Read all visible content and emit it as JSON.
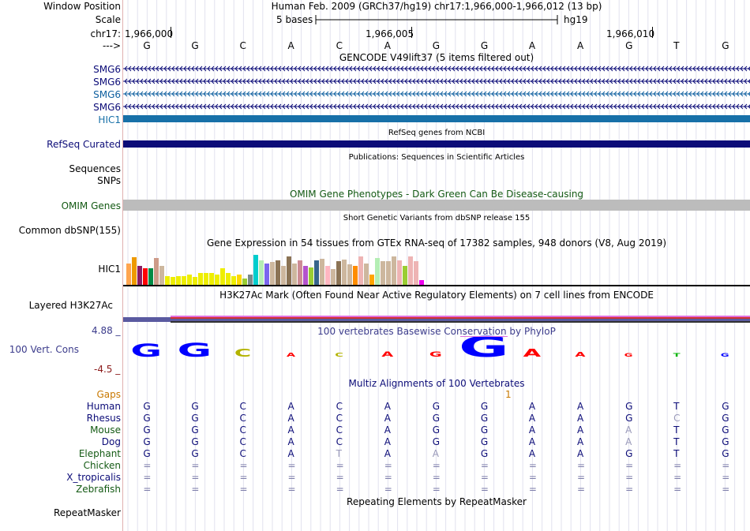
{
  "header": {
    "window_position_label": "Window Position",
    "window_position_value": "Human Feb. 2009 (GRCh37/hg19)   chr17:1,966,000-1,966,012 (13 bp)",
    "scale_label": "Scale",
    "scale_value": "5 bases",
    "scale_assembly": "hg19",
    "chrom_label": "chr17:",
    "coords": [
      "1,966,000",
      "1,966,005",
      "1,966,010"
    ],
    "strand_label": "--->"
  },
  "bases": [
    "G",
    "G",
    "C",
    "A",
    "C",
    "A",
    "G",
    "G",
    "A",
    "A",
    "G",
    "T",
    "G"
  ],
  "gencode": {
    "title": "GENCODE V49lift37 (5 items filtered out)",
    "genes": [
      "SMG6",
      "SMG6",
      "SMG6",
      "SMG6",
      "HIC1"
    ],
    "colors": [
      "#0c0c78",
      "#0c0c78",
      "#1060a0",
      "#0c0c78",
      "#1770a8"
    ]
  },
  "refseq": {
    "title": "RefSeq genes from NCBI",
    "label": "RefSeq Curated",
    "color": "#0c0c78"
  },
  "publications": {
    "title": "Publications: Sequences in Scientific Articles",
    "label1": "Sequences",
    "label2": "SNPs"
  },
  "omim": {
    "title": "OMIM Gene Phenotypes - Dark Green Can Be Disease-causing",
    "label": "OMIM Genes",
    "title_color": "#145a14",
    "bar_color": "#bcbcbc"
  },
  "dbsnp": {
    "title": "Short Genetic Variants from dbSNP release 155",
    "label": "Common dbSNP(155)"
  },
  "gtex": {
    "title": "Gene Expression in 54 tissues from GTEx RNA-seq of 17382 samples, 948 donors (V8, Aug 2019)",
    "label": "HIC1",
    "values": [
      0.72,
      0.92,
      0.62,
      0.55,
      0.55,
      0.9,
      0.62,
      0.28,
      0.25,
      0.3,
      0.3,
      0.35,
      0.25,
      0.4,
      0.4,
      0.4,
      0.35,
      0.55,
      0.4,
      0.3,
      0.35,
      0.2,
      0.35,
      1.0,
      0.82,
      0.72,
      0.75,
      0.82,
      0.62,
      0.95,
      0.72,
      0.82,
      0.62,
      0.58,
      0.82,
      0.88,
      0.62,
      0.52,
      0.8,
      0.85,
      0.68,
      0.62,
      0.95,
      0.72,
      0.35,
      0.9,
      0.8,
      0.78,
      0.95,
      0.82,
      0.62,
      0.95,
      0.78,
      0.15
    ],
    "colors": [
      "#ffa54f",
      "#ee9a00",
      "#8b1c62",
      "#ff0000",
      "#008b45",
      "#cd9b89",
      "#cdb79e",
      "#eeee00",
      "#eeee00",
      "#eeee00",
      "#eeee00",
      "#eeee00",
      "#eeee00",
      "#eeee00",
      "#eeee00",
      "#eeee00",
      "#eeee00",
      "#eeee00",
      "#eeee00",
      "#eeee00",
      "#ffd700",
      "#9acd32",
      "#7a8b8b",
      "#00cdcd",
      "#b4eeb4",
      "#7a67ee",
      "#cdb79e",
      "#8b7355",
      "#cdb79e",
      "#8b7355",
      "#cdb79e",
      "#cd8c95",
      "#b452cd",
      "#9acd32",
      "#36648b",
      "#cdb79e",
      "#ffb6c1",
      "#cdb79e",
      "#8b7355",
      "#cdb79e",
      "#cdb79e",
      "#ff8c00",
      "#eeb4b4",
      "#cdb79e",
      "#ffa500",
      "#b4eeb4",
      "#cdb79e",
      "#cdb79e",
      "#cdb79e",
      "#eeb4b4",
      "#9acd32",
      "#eeb4b4",
      "#eeb4b4",
      "#ee00ee"
    ]
  },
  "h3k27ac": {
    "title": "H3K27Ac Mark (Often Found Near Active Regulatory Elements) on 7 cell lines from ENCODE",
    "label": "Layered H3K27Ac"
  },
  "cons": {
    "title": "100 vertebrates Basewise Conservation by PhyloP",
    "label": "100 Vert. Cons",
    "max": "4.88 _",
    "min": "-4.5 _",
    "title_color": "#3c3c8c",
    "heights": [
      1.0,
      1.1,
      0.6,
      0.3,
      0.3,
      0.4,
      0.4,
      1.6,
      0.6,
      0.35,
      0.1,
      0.15,
      0.15
    ],
    "colors": [
      "#0000ff",
      "#0000ff",
      "#b3b300",
      "#ff0000",
      "#b3b300",
      "#ff0000",
      "#ff0000",
      "#0000ff",
      "#ff0000",
      "#ff0000",
      "#ff0000",
      "#00b300",
      "#0000ff"
    ]
  },
  "multiz": {
    "title": "Multiz Alignments of 100 Vertebrates",
    "title_color": "#0c0c78",
    "gaps_label": "Gaps",
    "gaps_value": "1",
    "gaps_color": "#c87800",
    "species": [
      {
        "name": "Human",
        "color": "#0c0c78",
        "bases": [
          "G",
          "G",
          "C",
          "A",
          "C",
          "A",
          "G",
          "G",
          "A",
          "A",
          "G",
          "T",
          "G"
        ]
      },
      {
        "name": "Rhesus",
        "color": "#0c0c78",
        "bases": [
          "G",
          "G",
          "C",
          "A",
          "C",
          "A",
          "G",
          "G",
          "A",
          "A",
          "G",
          "C",
          "G"
        ]
      },
      {
        "name": "Mouse",
        "color": "#145a14",
        "bases": [
          "G",
          "G",
          "C",
          "A",
          "C",
          "A",
          "G",
          "G",
          "A",
          "A",
          "A",
          "T",
          "G"
        ]
      },
      {
        "name": "Dog",
        "color": "#0c0c78",
        "bases": [
          "G",
          "G",
          "C",
          "A",
          "C",
          "A",
          "G",
          "G",
          "A",
          "A",
          "A",
          "T",
          "G"
        ]
      },
      {
        "name": "Elephant",
        "color": "#145a14",
        "bases": [
          "G",
          "G",
          "C",
          "A",
          "T",
          "A",
          "A",
          "G",
          "A",
          "A",
          "G",
          "T",
          "G"
        ]
      },
      {
        "name": "Chicken",
        "color": "#145a14",
        "bases": [
          "=",
          "=",
          "=",
          "=",
          "=",
          "=",
          "=",
          "=",
          "=",
          "=",
          "=",
          "=",
          "="
        ]
      },
      {
        "name": "X_tropicalis",
        "color": "#0c0c78",
        "bases": [
          "=",
          "=",
          "=",
          "=",
          "=",
          "=",
          "=",
          "=",
          "=",
          "=",
          "=",
          "=",
          "="
        ]
      },
      {
        "name": "Zebrafish",
        "color": "#145a14",
        "bases": [
          "=",
          "=",
          "=",
          "=",
          "=",
          "=",
          "=",
          "=",
          "=",
          "=",
          "=",
          "=",
          "="
        ]
      }
    ],
    "mismatch": [
      [],
      [
        11
      ],
      [
        10
      ],
      [
        10
      ],
      [
        4,
        6
      ],
      [],
      [],
      []
    ]
  },
  "repeatmasker": {
    "title": "Repeating Elements by RepeatMasker",
    "label": "RepeatMasker"
  }
}
